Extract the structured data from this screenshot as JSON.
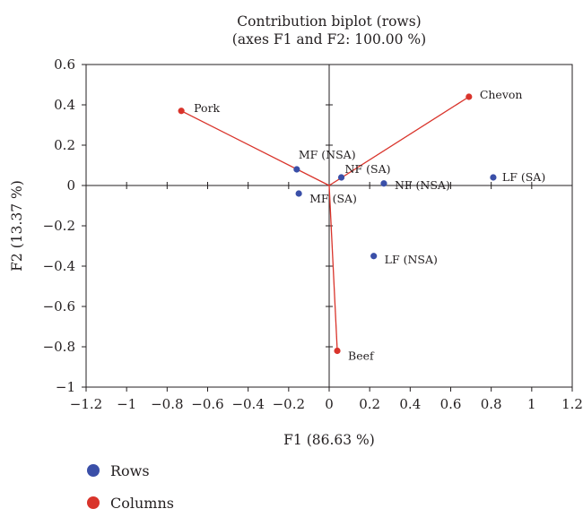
{
  "chart_data": {
    "type": "scatter",
    "title": "Contribution biplot (rows)",
    "subtitle": "(axes F1 and F2: 100.00 %)",
    "xlabel": "F1 (86.63 %)",
    "ylabel": "F2 (13.37 %)",
    "xlim": [
      -1.2,
      1.2
    ],
    "ylim": [
      -1,
      0.6
    ],
    "x_ticks": [
      "-1.2",
      "-1",
      "-0.8",
      "-0.6",
      "-0.4",
      "-0.2",
      "0",
      "0.2",
      "0.4",
      "0.6",
      "0.8",
      "1",
      "1.2"
    ],
    "y_ticks": [
      "0.6",
      "0.4",
      "0.2",
      "0",
      "-0.2",
      "-0.4",
      "-0.6",
      "-0.8",
      "-1"
    ],
    "series": [
      {
        "name": "Rows",
        "color": "#3a4fa8",
        "points": [
          {
            "label": "MF (NSA)",
            "x": -0.16,
            "y": 0.08
          },
          {
            "label": "NF (SA)",
            "x": 0.06,
            "y": 0.04
          },
          {
            "label": "NF (NSA)",
            "x": 0.27,
            "y": 0.01
          },
          {
            "label": "LF (SA)",
            "x": 0.81,
            "y": 0.04
          },
          {
            "label": "MF (SA)",
            "x": -0.15,
            "y": -0.04
          },
          {
            "label": "LF (NSA)",
            "x": 0.22,
            "y": -0.35
          }
        ]
      },
      {
        "name": "Columns",
        "color": "#d9342b",
        "vectors": true,
        "points": [
          {
            "label": "Pork",
            "x": -0.73,
            "y": 0.37
          },
          {
            "label": "Chevon",
            "x": 0.69,
            "y": 0.44
          },
          {
            "label": "Beef",
            "x": 0.04,
            "y": -0.82
          }
        ]
      }
    ],
    "legend_position": "bottom-left",
    "grid": false
  }
}
